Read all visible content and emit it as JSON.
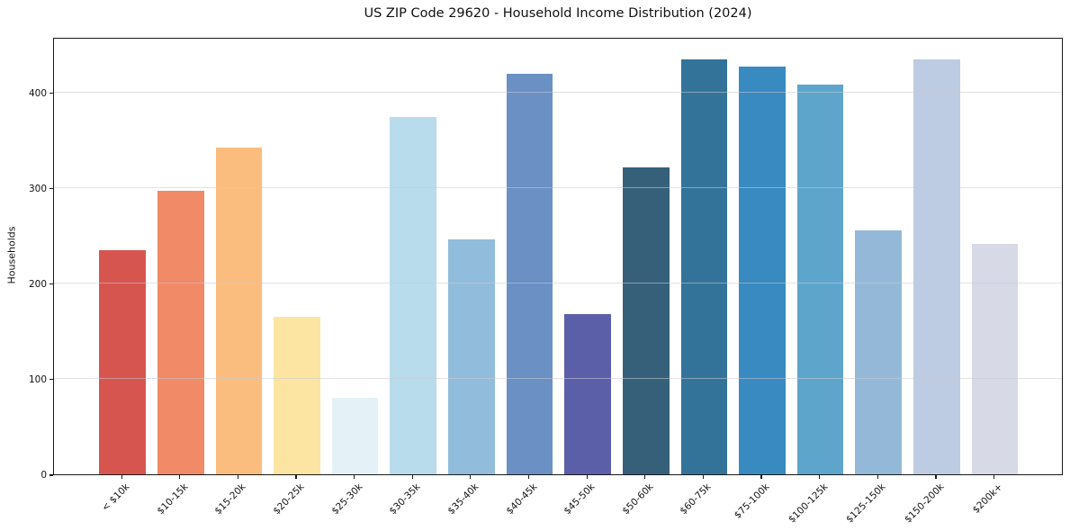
{
  "chart_data": {
    "type": "bar",
    "title": "US ZIP Code 29620 - Household Income Distribution (2024)",
    "xlabel": "",
    "ylabel": "Households",
    "categories": [
      "< $10k",
      "$10-15k",
      "$15-20k",
      "$20-25k",
      "$25-30k",
      "$30-35k",
      "$35-40k",
      "$40-45k",
      "$45-50k",
      "$50-60k",
      "$60-75k",
      "$75-100k",
      "$100-125k",
      "$125-150k",
      "$150-200k",
      "$200k+"
    ],
    "values": [
      235,
      297,
      342,
      165,
      80,
      374,
      246,
      419,
      168,
      321,
      434,
      427,
      408,
      255,
      434,
      241
    ],
    "bar_colors": [
      "#d6564f",
      "#f08a67",
      "#fbbd7e",
      "#fce5a2",
      "#e4f2f7",
      "#b8dcec",
      "#92bcdc",
      "#6a90c4",
      "#5b5fa8",
      "#36607a",
      "#33739a",
      "#388ac1",
      "#5da5cb",
      "#94b9d8",
      "#bdcce3",
      "#d7d9e7"
    ],
    "yticks": [
      0,
      100,
      200,
      300,
      400
    ],
    "ylim": [
      0,
      458
    ],
    "grid": "horizontal, light gray, drawn over bars",
    "legend": "none",
    "spine_color": "#1a1a1a",
    "background_color": "#ffffff"
  }
}
